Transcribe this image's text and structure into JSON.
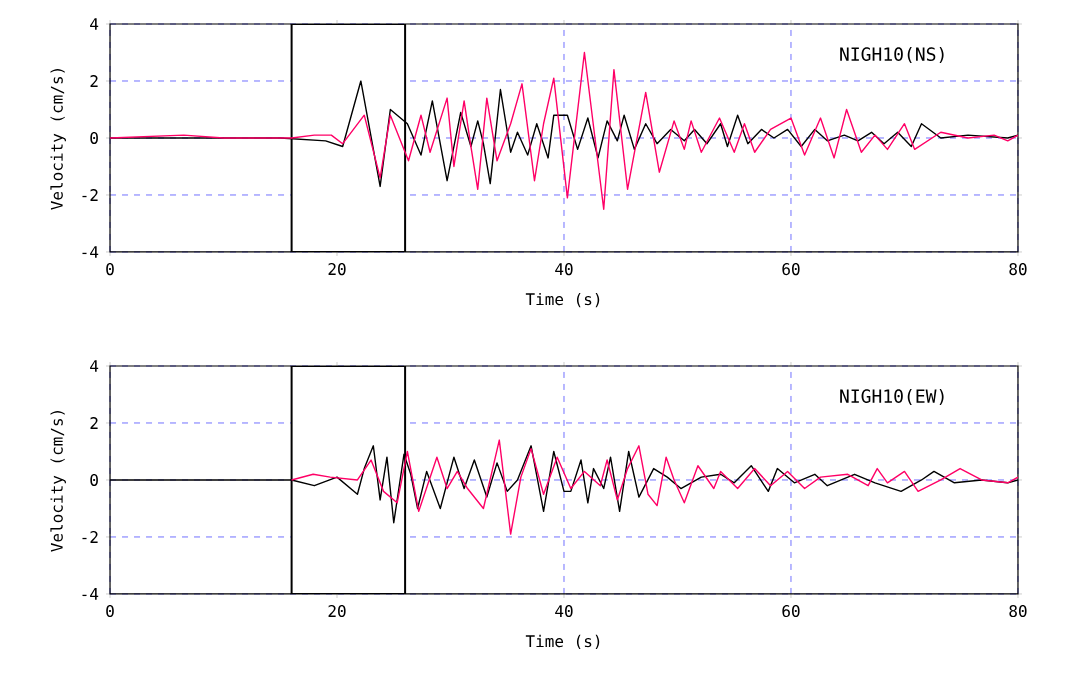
{
  "chart_data": [
    {
      "type": "line",
      "xlabel": "Time (s)",
      "ylabel": "Velocity (cm/s)",
      "annotations": [
        "NIGH10(NS)"
      ],
      "xlim": [
        0,
        80
      ],
      "ylim": [
        -4,
        4
      ],
      "xticks": [
        0,
        20,
        40,
        60,
        80
      ],
      "yticks": [
        -4,
        -2,
        0,
        2,
        4
      ],
      "grid": true,
      "bands": [
        {
          "axis": "x",
          "from": 16,
          "to": 26,
          "color": "#ffffff"
        }
      ],
      "series": [
        {
          "color": "#000000",
          "x": [
            0,
            5,
            10,
            15,
            19,
            20.5,
            22.1,
            23.8,
            24.7,
            26.2,
            27.4,
            28.4,
            29.7,
            30.9,
            31.8,
            32.4,
            32.9,
            33.5,
            34.4,
            35.3,
            35.9,
            36.8,
            37.6,
            38.6,
            39.1,
            40.3,
            41.2,
            42.1,
            43.0,
            43.8,
            44.7,
            45.3,
            46.2,
            47.2,
            48.2,
            49.4,
            50.6,
            51.5,
            52.6,
            53.8,
            54.4,
            55.3,
            56.2,
            57.4,
            58.5,
            59.7,
            60.9,
            62.1,
            63.2,
            64.7,
            65.9,
            67.1,
            68.2,
            69.4,
            70.6,
            71.5,
            73.2,
            75.6,
            79.1,
            80
          ],
          "values": [
            0,
            0,
            0,
            0,
            -0.1,
            -0.3,
            2.0,
            -1.7,
            1.0,
            0.5,
            -0.6,
            1.3,
            -1.5,
            0.9,
            -0.3,
            0.6,
            -0.2,
            -1.6,
            1.7,
            -0.5,
            0.2,
            -0.6,
            0.5,
            -0.7,
            0.8,
            0.8,
            -0.4,
            0.7,
            -0.7,
            0.6,
            -0.1,
            0.8,
            -0.4,
            0.5,
            -0.2,
            0.3,
            -0.1,
            0.3,
            -0.2,
            0.5,
            -0.3,
            0.8,
            -0.2,
            0.3,
            0,
            0.3,
            -0.3,
            0.3,
            -0.1,
            0.1,
            -0.1,
            0.2,
            -0.2,
            0.2,
            -0.3,
            0.5,
            0,
            0.1,
            0,
            0.1
          ]
        },
        {
          "color": "#ff0066",
          "x": [
            0,
            6.5,
            10,
            16,
            18,
            19.5,
            20.5,
            22.4,
            23.8,
            24.7,
            26.3,
            27.4,
            28.2,
            29.7,
            30.3,
            31.2,
            31.8,
            32.4,
            33.2,
            34.1,
            35.3,
            36.3,
            37.4,
            38.2,
            39.1,
            40.3,
            41.8,
            43.5,
            44.4,
            45.6,
            47.2,
            48.4,
            49.7,
            50.6,
            51.2,
            52.1,
            53.7,
            55.0,
            55.9,
            56.8,
            58.2,
            60.0,
            61.2,
            62.6,
            63.8,
            64.9,
            66.2,
            67.4,
            68.5,
            70.0,
            70.9,
            73.2,
            75.6,
            77.9,
            79.1,
            80
          ],
          "values": [
            0,
            0.1,
            0,
            0,
            0.1,
            0.1,
            -0.2,
            0.8,
            -1.4,
            0.8,
            -0.8,
            0.8,
            -0.5,
            1.4,
            -1.0,
            1.3,
            -0.3,
            -1.8,
            1.4,
            -0.8,
            0.5,
            1.9,
            -1.5,
            0.5,
            2.1,
            -2.1,
            3.0,
            -2.5,
            2.4,
            -1.8,
            1.6,
            -1.2,
            0.6,
            -0.4,
            0.6,
            -0.5,
            0.7,
            -0.5,
            0.5,
            -0.5,
            0.3,
            0.7,
            -0.6,
            0.7,
            -0.7,
            1.0,
            -0.5,
            0.1,
            -0.4,
            0.5,
            -0.4,
            0.2,
            0,
            0.1,
            -0.1,
            0.1
          ]
        }
      ]
    },
    {
      "type": "line",
      "xlabel": "Time (s)",
      "ylabel": "Velocity (cm/s)",
      "annotations": [
        "NIGH10(EW)"
      ],
      "xlim": [
        0,
        80
      ],
      "ylim": [
        -4,
        4
      ],
      "xticks": [
        0,
        20,
        40,
        60,
        80
      ],
      "yticks": [
        -4,
        -2,
        0,
        2,
        4
      ],
      "grid": true,
      "bands": [
        {
          "axis": "x",
          "from": 16,
          "to": 26,
          "color": "#ffffff"
        }
      ],
      "series": [
        {
          "color": "#000000",
          "x": [
            0,
            5,
            10,
            16,
            18,
            20,
            21.8,
            22.4,
            23.2,
            23.8,
            24.4,
            25.0,
            25.9,
            26.5,
            27.1,
            27.9,
            29.1,
            30.3,
            31.2,
            32.1,
            33.2,
            34.1,
            35.0,
            35.9,
            37.1,
            38.2,
            39.1,
            40.0,
            40.6,
            41.5,
            42.1,
            42.6,
            43.5,
            44.1,
            44.9,
            45.7,
            46.6,
            47.9,
            49.1,
            50.3,
            52.1,
            53.8,
            55.0,
            56.5,
            58.0,
            58.8,
            60.3,
            62.1,
            63.2,
            65.6,
            67.4,
            69.7,
            71.5,
            72.6,
            74.4,
            76.8,
            79.1,
            80
          ],
          "values": [
            0,
            0,
            0,
            0,
            -0.2,
            0.1,
            -0.5,
            0.4,
            1.2,
            -0.7,
            0.8,
            -1.5,
            0.9,
            0.2,
            -1.0,
            0.3,
            -1.0,
            0.8,
            -0.3,
            0.7,
            -0.6,
            0.6,
            -0.4,
            0,
            1.2,
            -1.1,
            1.0,
            -0.4,
            -0.4,
            0.7,
            -0.8,
            0.4,
            -0.3,
            0.8,
            -1.1,
            1.0,
            -0.6,
            0.4,
            0.1,
            -0.3,
            0.1,
            0.2,
            -0.1,
            0.5,
            -0.4,
            0.4,
            -0.1,
            0.2,
            -0.2,
            0.2,
            -0.1,
            -0.4,
            0,
            0.3,
            -0.1,
            0,
            -0.1,
            0
          ]
        },
        {
          "color": "#ff0066",
          "x": [
            16,
            17.9,
            19.4,
            21.8,
            23.0,
            24.1,
            25.3,
            26.2,
            27.2,
            28.8,
            29.7,
            30.6,
            31.5,
            32.9,
            34.3,
            35.3,
            36.2,
            37.1,
            38.2,
            39.4,
            40.6,
            41.8,
            43.2,
            43.8,
            44.7,
            45.6,
            46.6,
            47.4,
            48.2,
            49.0,
            49.7,
            50.6,
            51.8,
            53.2,
            53.8,
            55.3,
            56.8,
            58.2,
            59.7,
            61.2,
            62.6,
            65.0,
            66.8,
            67.6,
            68.5,
            70.0,
            71.2,
            73.2,
            74.9,
            76.8,
            79.1,
            80
          ],
          "values": [
            0,
            0.2,
            0.1,
            0,
            0.7,
            -0.4,
            -0.8,
            1.0,
            -1.1,
            0.8,
            -0.3,
            0.3,
            -0.3,
            -1.0,
            1.4,
            -1.9,
            0.1,
            1.1,
            -0.5,
            0.8,
            -0.3,
            0.3,
            -0.2,
            0.7,
            -0.7,
            0.4,
            1.2,
            -0.5,
            -0.9,
            0.8,
            0,
            -0.8,
            0.5,
            -0.3,
            0.3,
            -0.3,
            0.4,
            -0.2,
            0.3,
            -0.3,
            0.1,
            0.2,
            -0.2,
            0.4,
            -0.1,
            0.3,
            -0.4,
            0,
            0.4,
            0,
            -0.1,
            0.1
          ]
        }
      ]
    }
  ]
}
